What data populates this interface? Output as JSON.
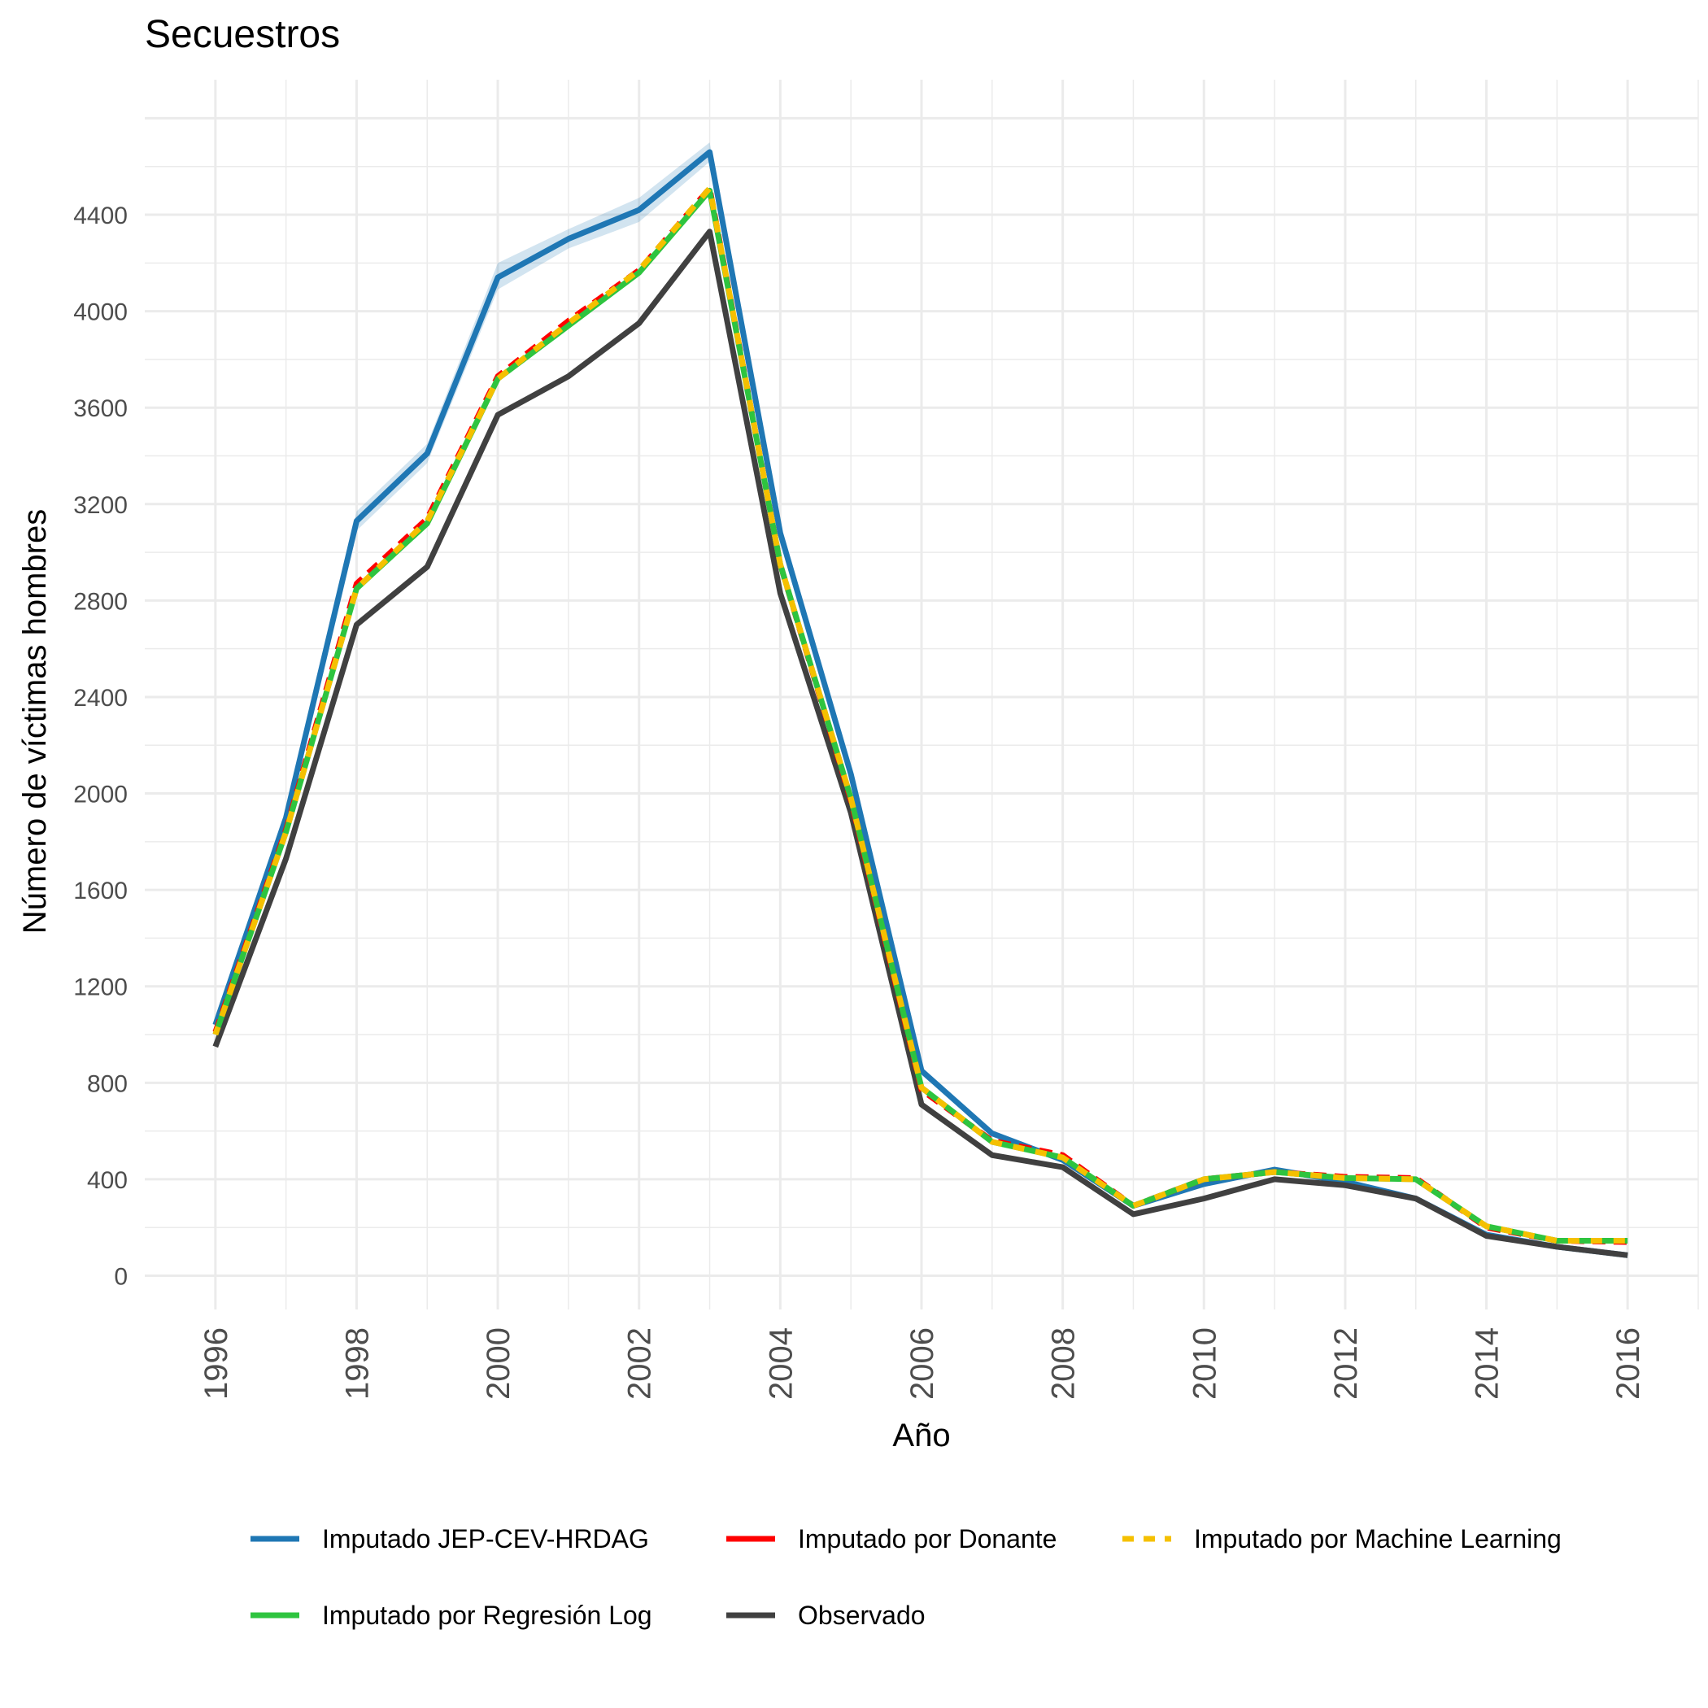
{
  "chart_data": {
    "type": "line",
    "title": "Secuestros",
    "xlabel": "Año",
    "ylabel": "Número de víctimas hombres",
    "xlim": [
      1995,
      2017
    ],
    "ylim": [
      -140,
      4960
    ],
    "x_ticks": [
      "1996",
      "1998",
      "2000",
      "2002",
      "2004",
      "2006",
      "2008",
      "2010",
      "2012",
      "2014",
      "2016"
    ],
    "y_ticks": [
      "0",
      "400",
      "800",
      "1200",
      "1600",
      "2000",
      "2400",
      "2800",
      "3200",
      "3600",
      "4000",
      "4400"
    ],
    "grid": true,
    "legend_position": "bottom",
    "x": [
      1996,
      1997,
      1998,
      1999,
      2000,
      2001,
      2002,
      2003,
      2004,
      2005,
      2006,
      2007,
      2008,
      2009,
      2010,
      2011,
      2012,
      2013,
      2014,
      2015,
      2016
    ],
    "series": [
      {
        "name": "Imputado JEP-CEV-HRDAG",
        "color": "#1f77b4",
        "style": "solid",
        "values": [
          1040,
          1900,
          3130,
          3410,
          4140,
          4300,
          4420,
          4660,
          3080,
          2080,
          850,
          590,
          480,
          290,
          380,
          440,
          390,
          320,
          170,
          120,
          85
        ],
        "band_low": [
          1020,
          1870,
          3090,
          3370,
          4090,
          4260,
          4370,
          4620,
          3050,
          2060,
          840,
          580,
          470,
          285,
          370,
          430,
          380,
          312,
          163,
          114,
          80
        ],
        "band_high": [
          1060,
          1930,
          3170,
          3450,
          4200,
          4340,
          4470,
          4700,
          3110,
          2100,
          860,
          600,
          490,
          295,
          390,
          450,
          400,
          328,
          177,
          126,
          90
        ]
      },
      {
        "name": "Imputado por Donante",
        "color": "#ff0000",
        "style": "dashed",
        "values": [
          1010,
          1850,
          2870,
          3140,
          3730,
          3960,
          4170,
          4510,
          2950,
          1970,
          770,
          560,
          500,
          290,
          400,
          430,
          410,
          405,
          200,
          145,
          140
        ]
      },
      {
        "name": "Imputado por Machine Learning",
        "color": "#f5c000",
        "style": "dashed",
        "values": [
          1000,
          1840,
          2850,
          3130,
          3720,
          3950,
          4170,
          4510,
          2950,
          1980,
          780,
          555,
          490,
          290,
          400,
          430,
          405,
          400,
          205,
          145,
          145
        ]
      },
      {
        "name": "Imputado por Regresión Log",
        "color": "#2ec43f",
        "style": "solid",
        "values": [
          1000,
          1840,
          2850,
          3120,
          3720,
          3940,
          4160,
          4500,
          2950,
          1980,
          780,
          555,
          490,
          290,
          400,
          430,
          405,
          400,
          205,
          145,
          145
        ]
      },
      {
        "name": "Observado",
        "color": "#404040",
        "style": "solid",
        "values": [
          950,
          1730,
          2700,
          2940,
          3570,
          3730,
          3950,
          4330,
          2830,
          1920,
          710,
          500,
          450,
          255,
          320,
          400,
          375,
          320,
          165,
          120,
          85
        ]
      }
    ]
  }
}
